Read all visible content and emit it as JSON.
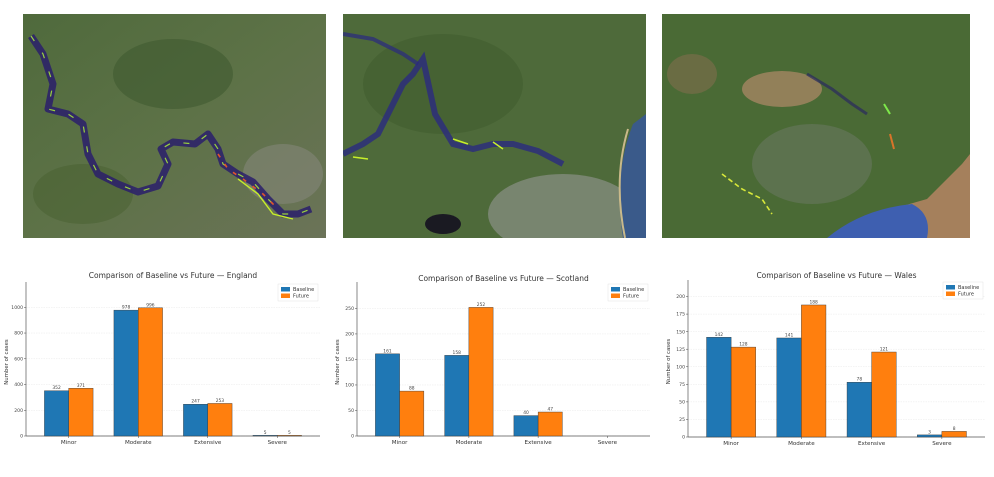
{
  "maps": [
    {
      "region": "England",
      "label": "England flood map satellite view"
    },
    {
      "region": "Scotland",
      "label": "Scotland flood map satellite view"
    },
    {
      "region": "Wales",
      "label": "Wales flood map satellite view"
    }
  ],
  "colors": {
    "baseline": "#1f77b4",
    "future": "#ff7f0e"
  },
  "chart_data": [
    {
      "type": "bar",
      "title": "Comparison of Baseline vs Future — England",
      "categories": [
        "Minor",
        "Moderate",
        "Extensive",
        "Severe"
      ],
      "series": [
        {
          "name": "Baseline",
          "values": [
            352,
            978,
            247,
            5
          ]
        },
        {
          "name": "Future",
          "values": [
            371,
            996,
            253,
            5
          ]
        }
      ],
      "xlabel": "",
      "ylabel": "Number of cases",
      "ylim": [
        0,
        1150
      ],
      "yticks": [
        0,
        200,
        400,
        600,
        800,
        1000
      ],
      "grid": "y",
      "legend_position": "upper right"
    },
    {
      "type": "bar",
      "title": "Comparison of Baseline vs Future — Scotland",
      "categories": [
        "Minor",
        "Moderate",
        "Extensive",
        "Severe"
      ],
      "series": [
        {
          "name": "Baseline",
          "values": [
            161,
            158,
            40,
            0
          ]
        },
        {
          "name": "Future",
          "values": [
            88,
            252,
            47,
            0
          ]
        }
      ],
      "xlabel": "",
      "ylabel": "Number of cases",
      "ylim": [
        0,
        290
      ],
      "yticks": [
        0,
        50,
        100,
        150,
        200,
        250
      ],
      "grid": "y",
      "legend_position": "upper right"
    },
    {
      "type": "bar",
      "title": "Comparison of Baseline vs Future — Wales",
      "categories": [
        "Minor",
        "Moderate",
        "Extensive",
        "Severe"
      ],
      "series": [
        {
          "name": "Baseline",
          "values": [
            142,
            141,
            78,
            3
          ]
        },
        {
          "name": "Future",
          "values": [
            128,
            188,
            121,
            8
          ]
        }
      ],
      "xlabel": "",
      "ylabel": "Number of cases",
      "ylim": [
        0,
        215
      ],
      "yticks": [
        0,
        25,
        50,
        75,
        100,
        125,
        150,
        175,
        200
      ],
      "grid": "y",
      "legend_position": "upper right"
    }
  ]
}
